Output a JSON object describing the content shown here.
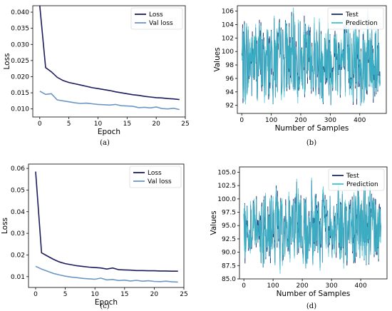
{
  "chart_data": [
    {
      "id": "a",
      "type": "line",
      "panel_label": "(a)",
      "xlabel": "Epoch",
      "ylabel": "Loss",
      "xlim": [
        -1.2,
        25
      ],
      "ylim": [
        0.0075,
        0.042
      ],
      "xticks": [
        "0",
        "5",
        "10",
        "15",
        "20",
        "25"
      ],
      "yticks": [
        "0.010",
        "0.015",
        "0.020",
        "0.025",
        "0.030",
        "0.035",
        "0.040"
      ],
      "legend_position": "top-right",
      "series": [
        {
          "name": "Loss",
          "color": "#1b1b5e",
          "x": [
            0,
            1,
            2,
            3,
            4,
            5,
            6,
            7,
            8,
            9,
            10,
            11,
            12,
            13,
            14,
            15,
            16,
            17,
            18,
            19,
            20,
            21,
            22,
            23,
            24
          ],
          "values": [
            0.042,
            0.0228,
            0.0215,
            0.0198,
            0.0188,
            0.0182,
            0.0178,
            0.0174,
            0.017,
            0.0166,
            0.0163,
            0.016,
            0.0157,
            0.0153,
            0.015,
            0.0147,
            0.0144,
            0.0142,
            0.0139,
            0.0137,
            0.0135,
            0.0134,
            0.0132,
            0.0131,
            0.0129
          ]
        },
        {
          "name": "Val loss",
          "color": "#6c97c5",
          "x": [
            0,
            1,
            2,
            3,
            4,
            5,
            6,
            7,
            8,
            9,
            10,
            11,
            12,
            13,
            14,
            15,
            16,
            17,
            18,
            19,
            20,
            21,
            22,
            23,
            24
          ],
          "values": [
            0.0155,
            0.0145,
            0.0147,
            0.0128,
            0.0125,
            0.0122,
            0.0119,
            0.0117,
            0.0118,
            0.0116,
            0.0114,
            0.0113,
            0.0112,
            0.0114,
            0.011,
            0.0109,
            0.0108,
            0.0104,
            0.0105,
            0.0103,
            0.0106,
            0.0101,
            0.01,
            0.0102,
            0.0098
          ]
        }
      ]
    },
    {
      "id": "b",
      "type": "line",
      "panel_label": "(b)",
      "xlabel": "Number of Samples",
      "ylabel": "Values",
      "xlim": [
        -15,
        490
      ],
      "ylim": [
        90.8,
        106.8
      ],
      "xticks": [
        "0",
        "100",
        "200",
        "300",
        "400"
      ],
      "yticks": [
        "92",
        "94",
        "96",
        "98",
        "100",
        "102",
        "104",
        "106"
      ],
      "legend_position": "top-right",
      "n_samples": 470,
      "min_value": 91.2,
      "max_value": 106.2,
      "series": [
        {
          "name": "Test",
          "color": "#1b2a72"
        },
        {
          "name": "Prediction",
          "color": "#3fc4d0"
        }
      ]
    },
    {
      "id": "c",
      "type": "line",
      "panel_label": "(c)",
      "xlabel": "Epoch",
      "ylabel": "Loss",
      "xlim": [
        -1.2,
        25
      ],
      "ylim": [
        0.005,
        0.062
      ],
      "xticks": [
        "0",
        "5",
        "10",
        "15",
        "20",
        "25"
      ],
      "yticks": [
        "0.01",
        "0.02",
        "0.03",
        "0.04",
        "0.05",
        "0.06"
      ],
      "legend_position": "top-right",
      "series": [
        {
          "name": "Loss",
          "color": "#1b1b5e",
          "x": [
            0,
            1,
            2,
            3,
            4,
            5,
            6,
            7,
            8,
            9,
            10,
            11,
            12,
            13,
            14,
            15,
            16,
            17,
            18,
            19,
            20,
            21,
            22,
            23,
            24
          ],
          "values": [
            0.0585,
            0.021,
            0.0195,
            0.018,
            0.0168,
            0.016,
            0.0155,
            0.015,
            0.0147,
            0.0144,
            0.0142,
            0.014,
            0.0135,
            0.014,
            0.0132,
            0.0131,
            0.013,
            0.0128,
            0.0128,
            0.0127,
            0.0127,
            0.0126,
            0.0126,
            0.0125,
            0.0125
          ]
        },
        {
          "name": "Val loss",
          "color": "#6c97c5",
          "x": [
            0,
            1,
            2,
            3,
            4,
            5,
            6,
            7,
            8,
            9,
            10,
            11,
            12,
            13,
            14,
            15,
            16,
            17,
            18,
            19,
            20,
            21,
            22,
            23,
            24
          ],
          "values": [
            0.0148,
            0.0135,
            0.0125,
            0.0115,
            0.0108,
            0.0102,
            0.0098,
            0.0095,
            0.0092,
            0.009,
            0.0088,
            0.0093,
            0.0085,
            0.0087,
            0.0082,
            0.0084,
            0.008,
            0.0083,
            0.0079,
            0.0081,
            0.0078,
            0.0077,
            0.0079,
            0.0076,
            0.0075
          ]
        }
      ]
    },
    {
      "id": "d",
      "type": "line",
      "panel_label": "(d)",
      "xlabel": "Number of Samples",
      "ylabel": "Values",
      "xlim": [
        -15,
        490
      ],
      "ylim": [
        85,
        106
      ],
      "xticks": [
        "0",
        "100",
        "200",
        "300",
        "400"
      ],
      "yticks": [
        "85.0",
        "87.5",
        "90.0",
        "92.5",
        "95.0",
        "97.5",
        "100.0",
        "102.5",
        "105.0"
      ],
      "legend_position": "top-right",
      "n_samples": 470,
      "min_value": 85.8,
      "max_value": 103.8,
      "series": [
        {
          "name": "Test",
          "color": "#1b2a72"
        },
        {
          "name": "Prediction",
          "color": "#3fc4d0"
        }
      ]
    }
  ]
}
